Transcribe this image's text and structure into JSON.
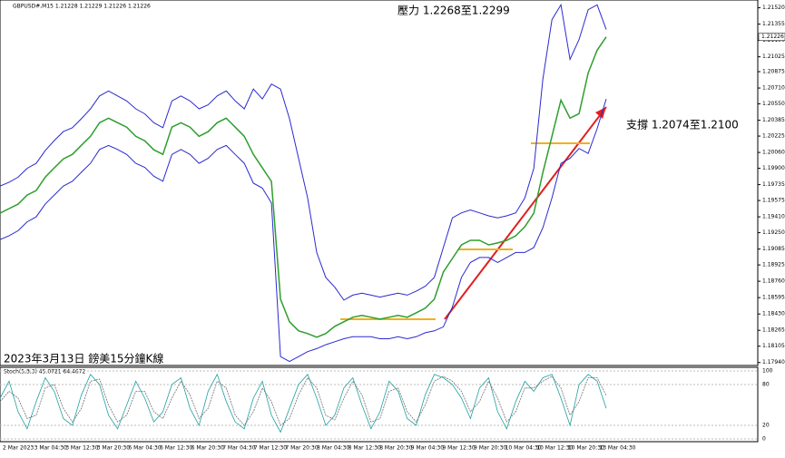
{
  "chart_data": {
    "type": "line",
    "header": "GBPUSD#,M15  1.21228 1.21229 1.21226 1.21226",
    "annotations": [
      "壓力 1.2268至1.2299",
      "支撐 1.2074至1.2100",
      "2023年3月13日 鎊美15分鐘K線"
    ],
    "current_price": {
      "value": 1.21226,
      "label": "1.21226"
    },
    "ylim": [
      1.1791,
      1.2158
    ],
    "yticks": [
      {
        "value": 1.2152,
        "label": "1.21520"
      },
      {
        "value": 1.21355,
        "label": "1.21355"
      },
      {
        "value": 1.2119,
        "label": "1.21190"
      },
      {
        "value": 1.21025,
        "label": "1.21025"
      },
      {
        "value": 1.20875,
        "label": "1.20875"
      },
      {
        "value": 1.2071,
        "label": "1.20710"
      },
      {
        "value": 1.2055,
        "label": "1.20550"
      },
      {
        "value": 1.20385,
        "label": "1.20385"
      },
      {
        "value": 1.20225,
        "label": "1.20225"
      },
      {
        "value": 1.2006,
        "label": "1.20060"
      },
      {
        "value": 1.199,
        "label": "1.19900"
      },
      {
        "value": 1.19735,
        "label": "1.19735"
      },
      {
        "value": 1.19575,
        "label": "1.19575"
      },
      {
        "value": 1.1941,
        "label": "1.19410"
      },
      {
        "value": 1.1925,
        "label": "1.19250"
      },
      {
        "value": 1.19085,
        "label": "1.19085"
      },
      {
        "value": 1.18925,
        "label": "1.18925"
      },
      {
        "value": 1.1876,
        "label": "1.18760"
      },
      {
        "value": 1.18595,
        "label": "1.18595"
      },
      {
        "value": 1.1843,
        "label": "1.18430"
      },
      {
        "value": 1.18265,
        "label": "1.18265"
      },
      {
        "value": 1.18105,
        "label": "1.18105"
      },
      {
        "value": 1.1794,
        "label": "1.17940"
      }
    ],
    "x_labels": [
      "2 Mar 2023",
      "3 Mar 04:30",
      "3 Mar 12:30",
      "3 Mar 20:30",
      "6 Mar 04:30",
      "6 Mar 12:30",
      "6 Mar 20:30",
      "7 Mar 04:30",
      "7 Mar 12:30",
      "7 Mar 20:30",
      "8 Mar 04:30",
      "8 Mar 12:30",
      "8 Mar 20:30",
      "9 Mar 04:30",
      "9 Mar 12:30",
      "9 Mar 20:30",
      "10 Mar 04:30",
      "10 Mar 12:30",
      "10 Mar 20:30",
      "13 Mar 04:30"
    ],
    "series": [
      {
        "name": "Close",
        "color": "#2e9e2e",
        "values": [
          1.19447,
          1.19493,
          1.19538,
          1.1963,
          1.19675,
          1.19812,
          1.19904,
          1.19995,
          1.20041,
          1.20132,
          1.20223,
          1.2036,
          1.20406,
          1.2036,
          1.20315,
          1.20223,
          1.20178,
          1.20086,
          1.20041,
          1.20315,
          1.2036,
          1.20315,
          1.20223,
          1.20269,
          1.2036,
          1.20406,
          1.20315,
          1.20223,
          1.20041,
          1.19904,
          1.19767,
          1.18579,
          1.18351,
          1.1826,
          1.18232,
          1.18196,
          1.18232,
          1.18305,
          1.18351,
          1.18397,
          1.18415,
          1.18397,
          1.18378,
          1.18397,
          1.18415,
          1.18397,
          1.18442,
          1.18488,
          1.18579,
          1.18853,
          1.1899,
          1.19127,
          1.19173,
          1.19173,
          1.19127,
          1.19146,
          1.19173,
          1.19219,
          1.1931,
          1.19447,
          1.19858,
          1.20223,
          1.20588,
          1.20406,
          1.20452,
          1.20862,
          1.21091,
          1.21226
        ]
      },
      {
        "name": "Upper band",
        "color": "#2a2ad0",
        "values": [
          1.1972,
          1.1976,
          1.1981,
          1.199,
          1.1995,
          1.2008,
          1.2018,
          1.2027,
          1.2031,
          1.204,
          1.205,
          1.2063,
          1.2068,
          1.2063,
          1.2058,
          1.205,
          1.2045,
          1.2036,
          1.2031,
          1.2058,
          1.2063,
          1.2058,
          1.205,
          1.2054,
          1.2063,
          1.2068,
          1.2058,
          1.205,
          1.207,
          1.206,
          1.2075,
          1.207,
          1.204,
          1.2,
          1.196,
          1.1905,
          1.188,
          1.187,
          1.1857,
          1.1862,
          1.1864,
          1.1862,
          1.186,
          1.1862,
          1.1864,
          1.1862,
          1.1866,
          1.1871,
          1.188,
          1.191,
          1.194,
          1.1945,
          1.1948,
          1.1945,
          1.1942,
          1.194,
          1.1942,
          1.1945,
          1.196,
          1.199,
          1.208,
          1.214,
          1.2155,
          1.21,
          1.212,
          1.215,
          1.2155,
          1.213
        ]
      },
      {
        "name": "Lower band",
        "color": "#2a2ad0",
        "values": [
          1.1918,
          1.1922,
          1.1927,
          1.1936,
          1.1941,
          1.1954,
          1.1963,
          1.1972,
          1.1977,
          1.1986,
          1.1995,
          1.2009,
          1.2013,
          1.2009,
          1.2004,
          1.1995,
          1.1991,
          1.1982,
          1.1977,
          1.2004,
          1.2009,
          1.2004,
          1.1995,
          1.2,
          1.2009,
          1.2013,
          1.2004,
          1.1995,
          1.1975,
          1.197,
          1.1955,
          1.18,
          1.1795,
          1.18,
          1.1805,
          1.1808,
          1.1812,
          1.1815,
          1.1818,
          1.182,
          1.182,
          1.182,
          1.1818,
          1.1818,
          1.182,
          1.1818,
          1.182,
          1.1824,
          1.1826,
          1.183,
          1.185,
          1.188,
          1.1895,
          1.19,
          1.19,
          1.1895,
          1.19,
          1.1905,
          1.1905,
          1.191,
          1.193,
          1.196,
          1.1995,
          1.2,
          1.201,
          1.2005,
          1.203,
          1.206
        ]
      }
    ],
    "stochastic": {
      "label": "Stoch(5,3,3) 45.0721 64.4672",
      "ylim": [
        0,
        100
      ],
      "yticks": [
        100,
        80,
        20,
        0
      ],
      "main": {
        "color": "#20a0a0",
        "values": [
          60,
          85,
          40,
          15,
          55,
          90,
          70,
          30,
          20,
          65,
          95,
          80,
          35,
          15,
          50,
          85,
          60,
          25,
          40,
          80,
          90,
          45,
          20,
          70,
          95,
          55,
          25,
          15,
          60,
          85,
          35,
          10,
          45,
          80,
          95,
          60,
          20,
          35,
          75,
          90,
          50,
          15,
          40,
          85,
          70,
          30,
          20,
          65,
          95,
          90,
          80,
          60,
          30,
          75,
          90,
          40,
          15,
          55,
          85,
          70,
          90,
          95,
          60,
          20,
          80,
          95,
          85,
          45
        ]
      },
      "signal": {
        "color": "#707070",
        "values": [
          55,
          70,
          60,
          30,
          35,
          75,
          80,
          45,
          25,
          45,
          85,
          88,
          50,
          25,
          35,
          70,
          70,
          40,
          30,
          60,
          85,
          65,
          30,
          45,
          85,
          75,
          35,
          20,
          40,
          75,
          55,
          20,
          30,
          65,
          90,
          75,
          35,
          28,
          60,
          85,
          65,
          25,
          30,
          70,
          75,
          40,
          25,
          50,
          85,
          92,
          85,
          70,
          40,
          55,
          85,
          60,
          25,
          40,
          75,
          75,
          85,
          92,
          75,
          35,
          55,
          90,
          90,
          64
        ]
      }
    }
  }
}
